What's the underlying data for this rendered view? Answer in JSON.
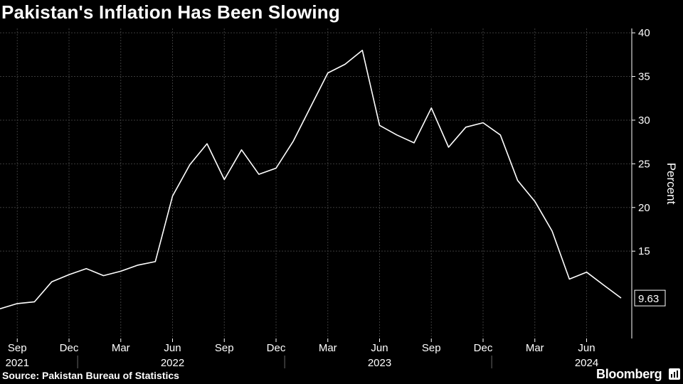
{
  "title": "Pakistan's Inflation Has Been Slowing",
  "source": "Source: Pakistan Bureau of Statistics",
  "brand": "Bloomberg",
  "brand_icon": "bloomberg-terminal-icon",
  "colors": {
    "background": "#000000",
    "line": "#ffffff",
    "grid": "#3a3a3a",
    "text": "#ffffff"
  },
  "chart_data": {
    "type": "line",
    "title": "Pakistan's Inflation Has Been Slowing",
    "xlabel": "",
    "ylabel": "Percent",
    "ylim": [
      0,
      40
    ],
    "yticks": [
      15,
      20,
      25,
      30,
      35,
      40
    ],
    "grid": true,
    "legend": "none",
    "x": [
      "2021-08",
      "2021-09",
      "2021-10",
      "2021-11",
      "2021-12",
      "2022-01",
      "2022-02",
      "2022-03",
      "2022-04",
      "2022-05",
      "2022-06",
      "2022-07",
      "2022-08",
      "2022-09",
      "2022-10",
      "2022-11",
      "2022-12",
      "2023-01",
      "2023-02",
      "2023-03",
      "2023-04",
      "2023-05",
      "2023-06",
      "2023-07",
      "2023-08",
      "2023-09",
      "2023-10",
      "2023-11",
      "2023-12",
      "2024-01",
      "2024-02",
      "2024-03",
      "2024-04",
      "2024-05",
      "2024-06",
      "2024-07",
      "2024-08"
    ],
    "x_tick_labels": [
      {
        "month": "Sep",
        "year": "2021"
      },
      {
        "month": "Dec",
        "year": ""
      },
      {
        "month": "Mar",
        "year": ""
      },
      {
        "month": "Jun",
        "year": "2022"
      },
      {
        "month": "Sep",
        "year": ""
      },
      {
        "month": "Dec",
        "year": ""
      },
      {
        "month": "Mar",
        "year": ""
      },
      {
        "month": "Jun",
        "year": "2023"
      },
      {
        "month": "Sep",
        "year": ""
      },
      {
        "month": "Dec",
        "year": ""
      },
      {
        "month": "Mar",
        "year": ""
      },
      {
        "month": "Jun",
        "year": "2024"
      }
    ],
    "series": [
      {
        "values": [
          8.4,
          9.0,
          9.2,
          11.5,
          12.3,
          13.0,
          12.2,
          12.7,
          13.4,
          13.8,
          21.3,
          24.9,
          27.3,
          23.2,
          26.6,
          23.8,
          24.5,
          27.6,
          31.5,
          35.4,
          36.4,
          38.0,
          29.4,
          28.3,
          27.4,
          31.4,
          26.9,
          29.2,
          29.7,
          28.3,
          23.1,
          20.7,
          17.3,
          11.8,
          12.6,
          11.1,
          9.63
        ]
      }
    ],
    "last_value_label": "9.63"
  }
}
